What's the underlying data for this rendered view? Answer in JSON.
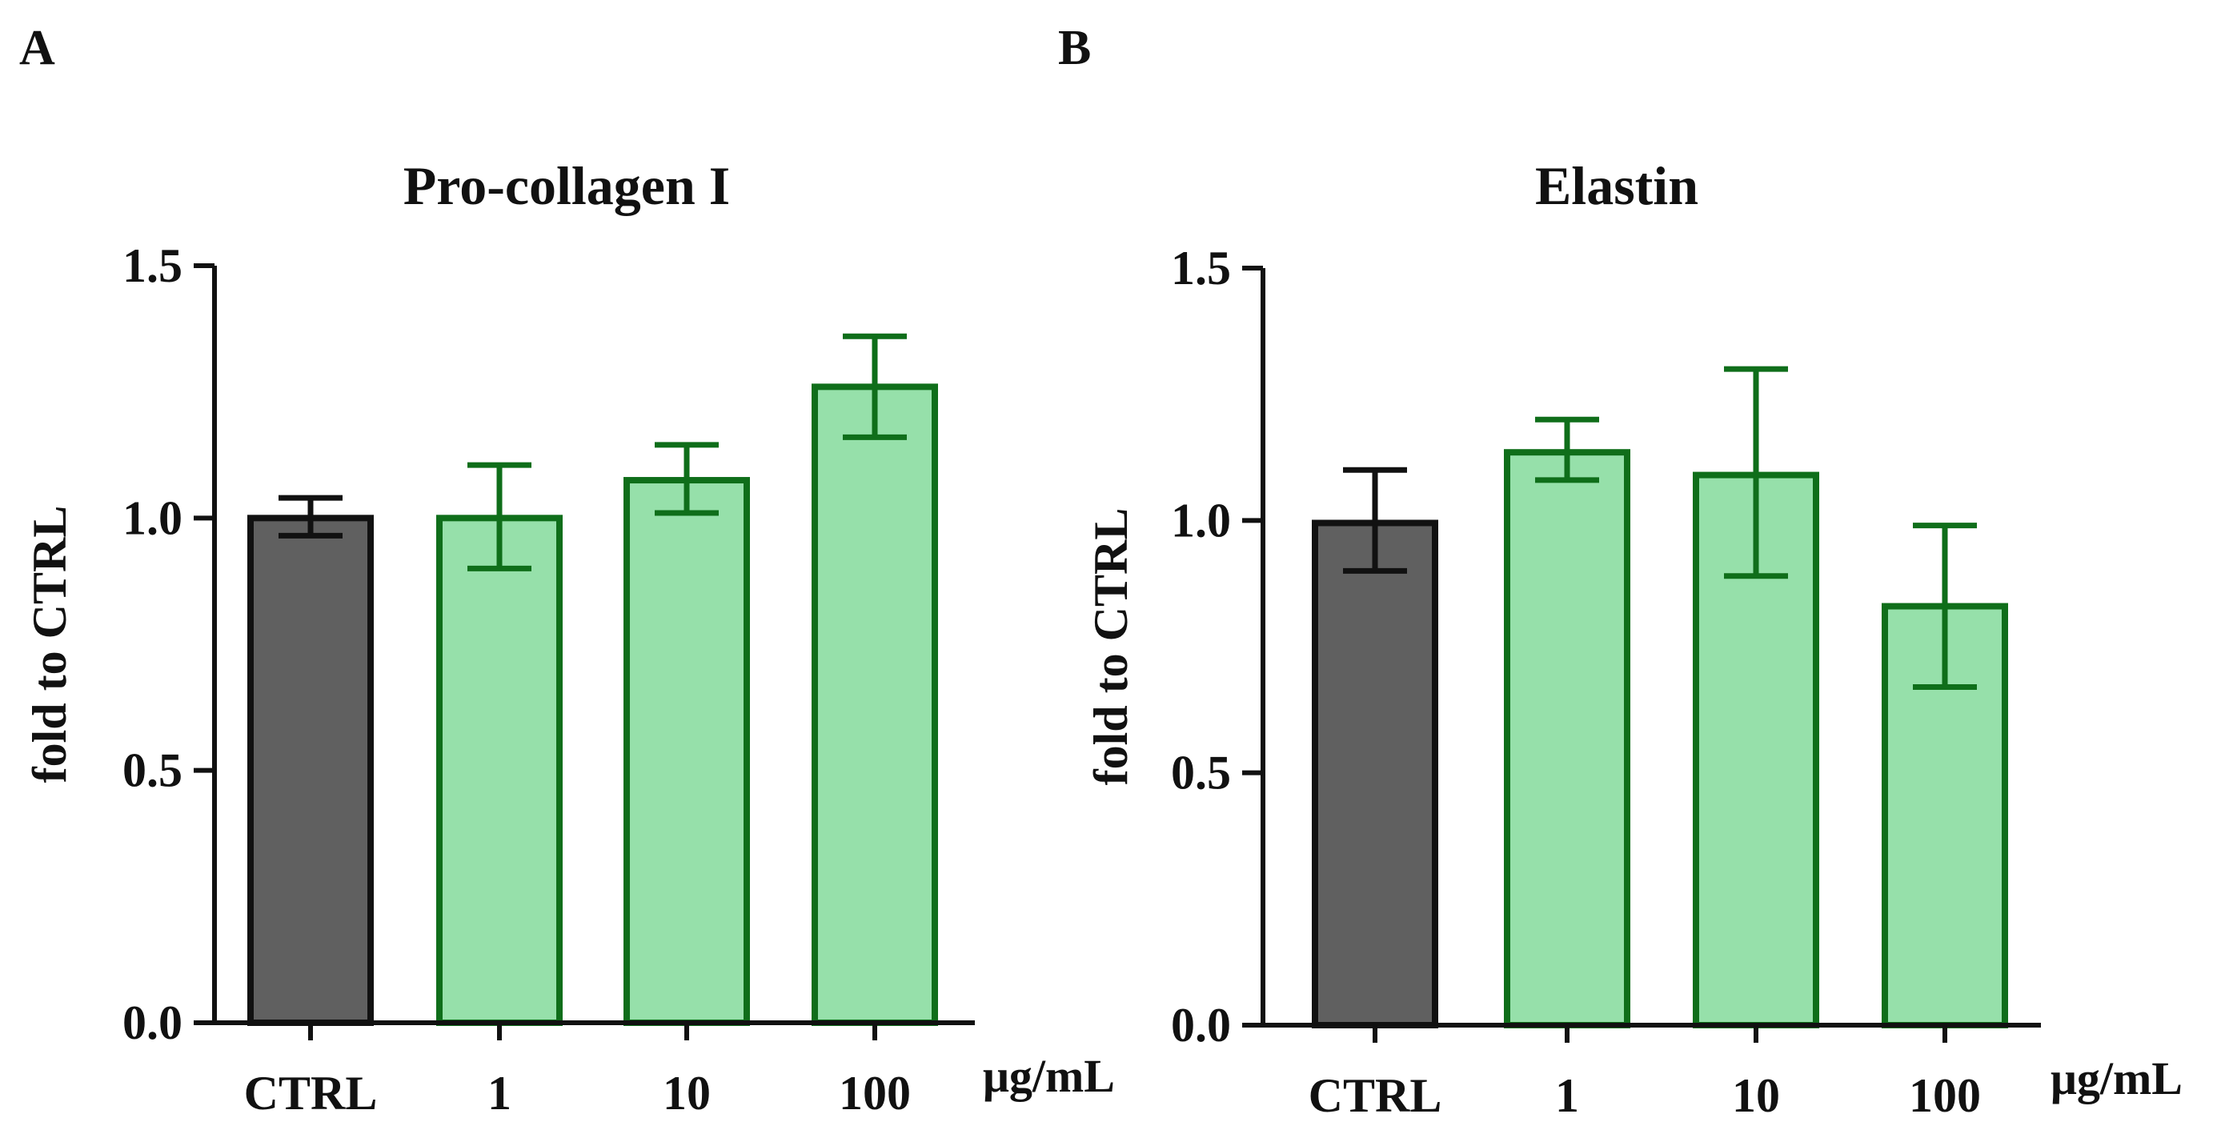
{
  "panels": [
    {
      "letter": "A"
    },
    {
      "letter": "B"
    }
  ],
  "chart_data": [
    {
      "type": "bar",
      "title": "Pro-collagen I",
      "categories": [
        "CTRL",
        "1",
        "10",
        "100"
      ],
      "values": [
        1.0,
        1.0,
        1.075,
        1.26
      ],
      "error_low": [
        0.965,
        0.9,
        1.01,
        1.16
      ],
      "error_high": [
        1.04,
        1.105,
        1.145,
        1.36
      ],
      "ylabel": "fold to CTRL",
      "xunit": "μg/mL",
      "ylim": [
        0,
        1.5
      ],
      "yticks": [
        0,
        0.5,
        1.0,
        1.5
      ],
      "ytick_labels": [
        "0.0",
        "0.5",
        "1.0",
        "1.5"
      ],
      "bar_colors": [
        "#606060",
        "#96e0aa",
        "#96e0aa",
        "#96e0aa"
      ],
      "edge_colors": [
        "#111111",
        "#0f6e1a",
        "#0f6e1a",
        "#0f6e1a"
      ],
      "grid": false
    },
    {
      "type": "bar",
      "title": "Elastin",
      "categories": [
        "CTRL",
        "1",
        "10",
        "100"
      ],
      "values": [
        0.995,
        1.135,
        1.09,
        0.83
      ],
      "error_low": [
        0.9,
        1.08,
        0.89,
        0.67
      ],
      "error_high": [
        1.1,
        1.2,
        1.3,
        0.99
      ],
      "ylabel": "fold to CTRL",
      "xunit": "μg/mL",
      "ylim": [
        0,
        1.5
      ],
      "yticks": [
        0,
        0.5,
        1.0,
        1.5
      ],
      "ytick_labels": [
        "0.0",
        "0.5",
        "1.0",
        "1.5"
      ],
      "bar_colors": [
        "#606060",
        "#96e0aa",
        "#96e0aa",
        "#96e0aa"
      ],
      "edge_colors": [
        "#111111",
        "#0f6e1a",
        "#0f6e1a",
        "#0f6e1a"
      ],
      "grid": false
    }
  ]
}
